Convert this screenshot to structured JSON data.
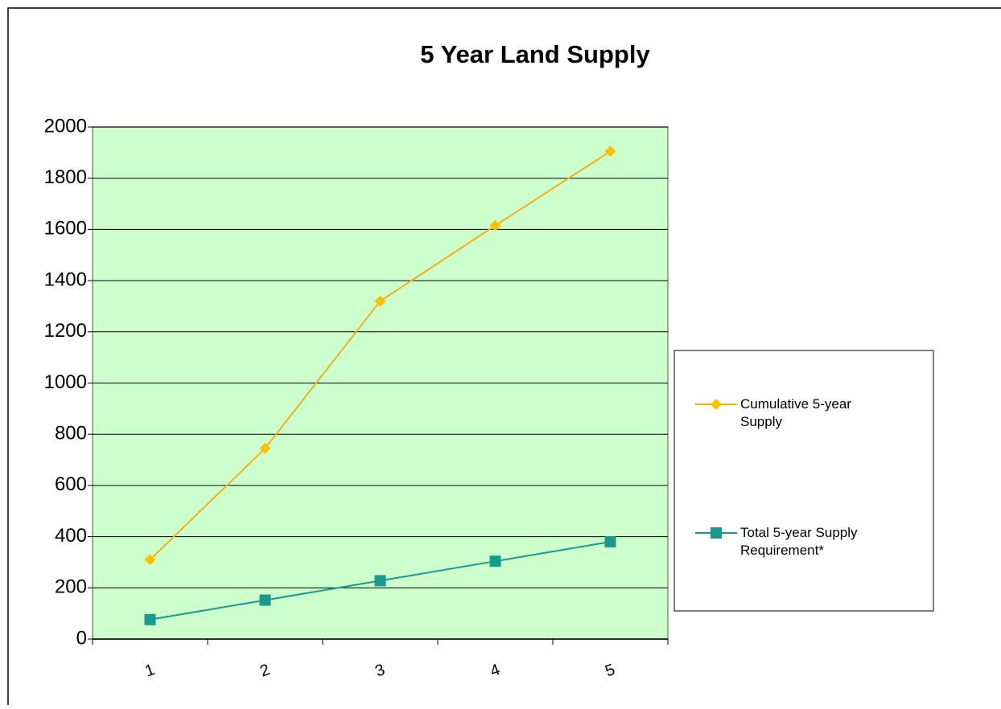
{
  "chart_data": {
    "type": "line",
    "title": "5 Year Land Supply",
    "categories": [
      "1",
      "2",
      "3",
      "4",
      "5"
    ],
    "series": [
      {
        "name": "Cumulative 5-year Supply",
        "color": "#f2b01e",
        "marker": "diamond",
        "values": [
          310,
          745,
          1320,
          1615,
          1905
        ]
      },
      {
        "name": "Total 5-year Supply Requirement*",
        "color": "#1a9a8c",
        "marker": "square",
        "values": [
          76,
          152,
          228,
          304,
          380
        ]
      }
    ],
    "ylim": [
      0,
      2000
    ],
    "yticks": [
      0,
      200,
      400,
      600,
      800,
      1000,
      1200,
      1400,
      1600,
      1800,
      2000
    ],
    "grid": true,
    "legend": "right",
    "plot_background": "#ccffcc"
  }
}
